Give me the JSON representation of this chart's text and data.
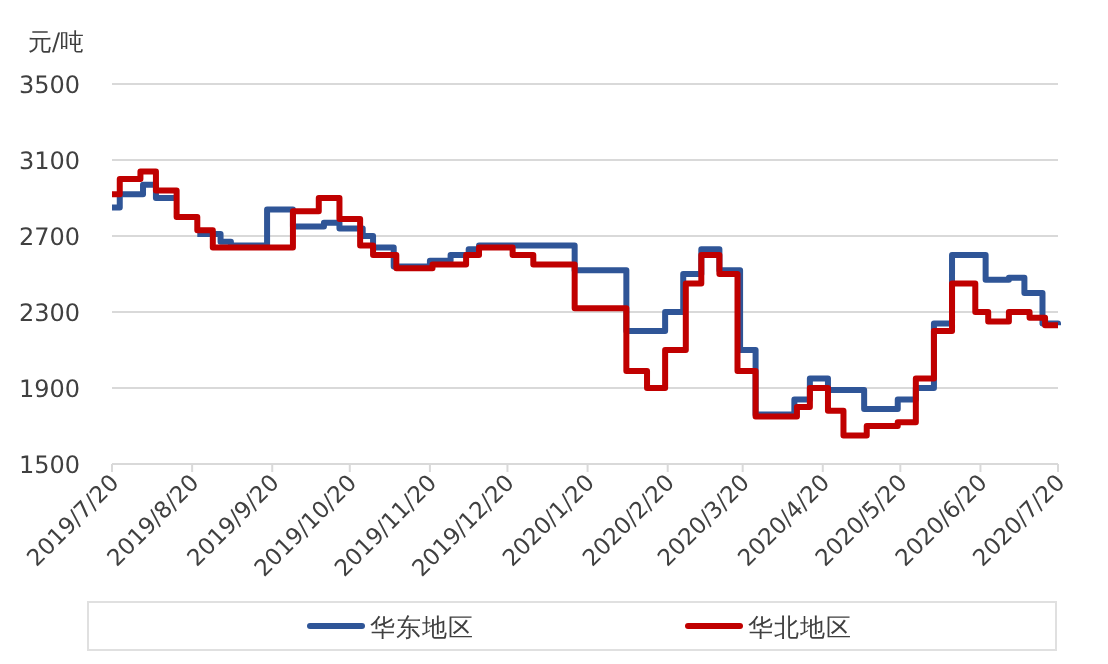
{
  "chart_data": {
    "type": "step",
    "ylabel": "元/吨",
    "ylim": [
      1500,
      3500
    ],
    "yticks": [
      1500,
      1900,
      2300,
      2700,
      3100,
      3500
    ],
    "xlim": [
      "2019-07-20",
      "2020-07-20"
    ],
    "xticks": [
      {
        "value": "2019-07-20",
        "label": "2019/7/20"
      },
      {
        "value": "2019-08-20",
        "label": "2019/8/20"
      },
      {
        "value": "2019-09-20",
        "label": "2019/9/20"
      },
      {
        "value": "2019-10-20",
        "label": "2019/10/20"
      },
      {
        "value": "2019-11-20",
        "label": "2019/11/20"
      },
      {
        "value": "2019-12-20",
        "label": "2019/12/20"
      },
      {
        "value": "2020-01-20",
        "label": "2020/1/20"
      },
      {
        "value": "2020-02-20",
        "label": "2020/2/20"
      },
      {
        "value": "2020-03-20",
        "label": "2020/3/20"
      },
      {
        "value": "2020-04-20",
        "label": "2020/4/20"
      },
      {
        "value": "2020-05-20",
        "label": "2020/5/20"
      },
      {
        "value": "2020-06-20",
        "label": "2020/6/20"
      },
      {
        "value": "2020-07-20",
        "label": "2020/7/20"
      }
    ],
    "grid": "y",
    "legend": "bottom",
    "line_style": "solid",
    "series": [
      {
        "name": "华东地区",
        "color": "#2f5597",
        "x": [
          "2019-07-20",
          "2019-07-23",
          "2019-08-01",
          "2019-08-06",
          "2019-08-14",
          "2019-08-22",
          "2019-08-31",
          "2019-09-04",
          "2019-09-18",
          "2019-09-28",
          "2019-10-10",
          "2019-10-16",
          "2019-10-25",
          "2019-10-29",
          "2019-11-06",
          "2019-11-20",
          "2019-11-28",
          "2019-12-05",
          "2019-12-09",
          "2020-01-15",
          "2020-02-04",
          "2020-02-19",
          "2020-02-26",
          "2020-03-04",
          "2020-03-11",
          "2020-03-19",
          "2020-03-25",
          "2020-04-09",
          "2020-04-15",
          "2020-04-22",
          "2020-05-06",
          "2020-05-19",
          "2020-05-26",
          "2020-06-02",
          "2020-06-09",
          "2020-06-22",
          "2020-07-01",
          "2020-07-07",
          "2020-07-14",
          "2020-07-20"
        ],
        "values": [
          2850,
          2920,
          2970,
          2900,
          null,
          2710,
          2670,
          2650,
          2840,
          2750,
          2770,
          2740,
          2700,
          2640,
          2540,
          2570,
          2600,
          2630,
          2650,
          2520,
          2200,
          2300,
          2500,
          2630,
          2520,
          2100,
          1760,
          1840,
          1950,
          1890,
          1790,
          1840,
          1900,
          2240,
          2600,
          2470,
          2480,
          2400,
          2240,
          2230
        ]
      },
      {
        "name": "华北地区",
        "color": "#c00000",
        "x": [
          "2019-07-20",
          "2019-07-23",
          "2019-07-31",
          "2019-08-06",
          "2019-08-14",
          "2019-08-22",
          "2019-08-28",
          "2019-09-28",
          "2019-10-08",
          "2019-10-16",
          "2019-10-24",
          "2019-10-29",
          "2019-11-07",
          "2019-11-21",
          "2019-12-04",
          "2019-12-09",
          "2019-12-22",
          "2019-12-30",
          "2020-01-15",
          "2020-02-04",
          "2020-02-12",
          "2020-02-19",
          "2020-02-27",
          "2020-03-04",
          "2020-03-11",
          "2020-03-18",
          "2020-03-25",
          "2020-04-10",
          "2020-04-15",
          "2020-04-22",
          "2020-04-28",
          "2020-05-07",
          "2020-05-19",
          "2020-05-26",
          "2020-06-02",
          "2020-06-09",
          "2020-06-18",
          "2020-06-23",
          "2020-07-01",
          "2020-07-09",
          "2020-07-15",
          "2020-07-20"
        ],
        "values": [
          2920,
          3000,
          3040,
          2940,
          2800,
          2730,
          2640,
          2830,
          2900,
          2790,
          2650,
          2600,
          2530,
          2550,
          2600,
          2640,
          2600,
          2550,
          2320,
          1990,
          1900,
          2100,
          2450,
          2600,
          2500,
          1990,
          1750,
          1800,
          1900,
          1780,
          1650,
          1700,
          1720,
          1950,
          2200,
          2450,
          2300,
          2250,
          2300,
          2270,
          2230,
          2230
        ]
      }
    ]
  }
}
